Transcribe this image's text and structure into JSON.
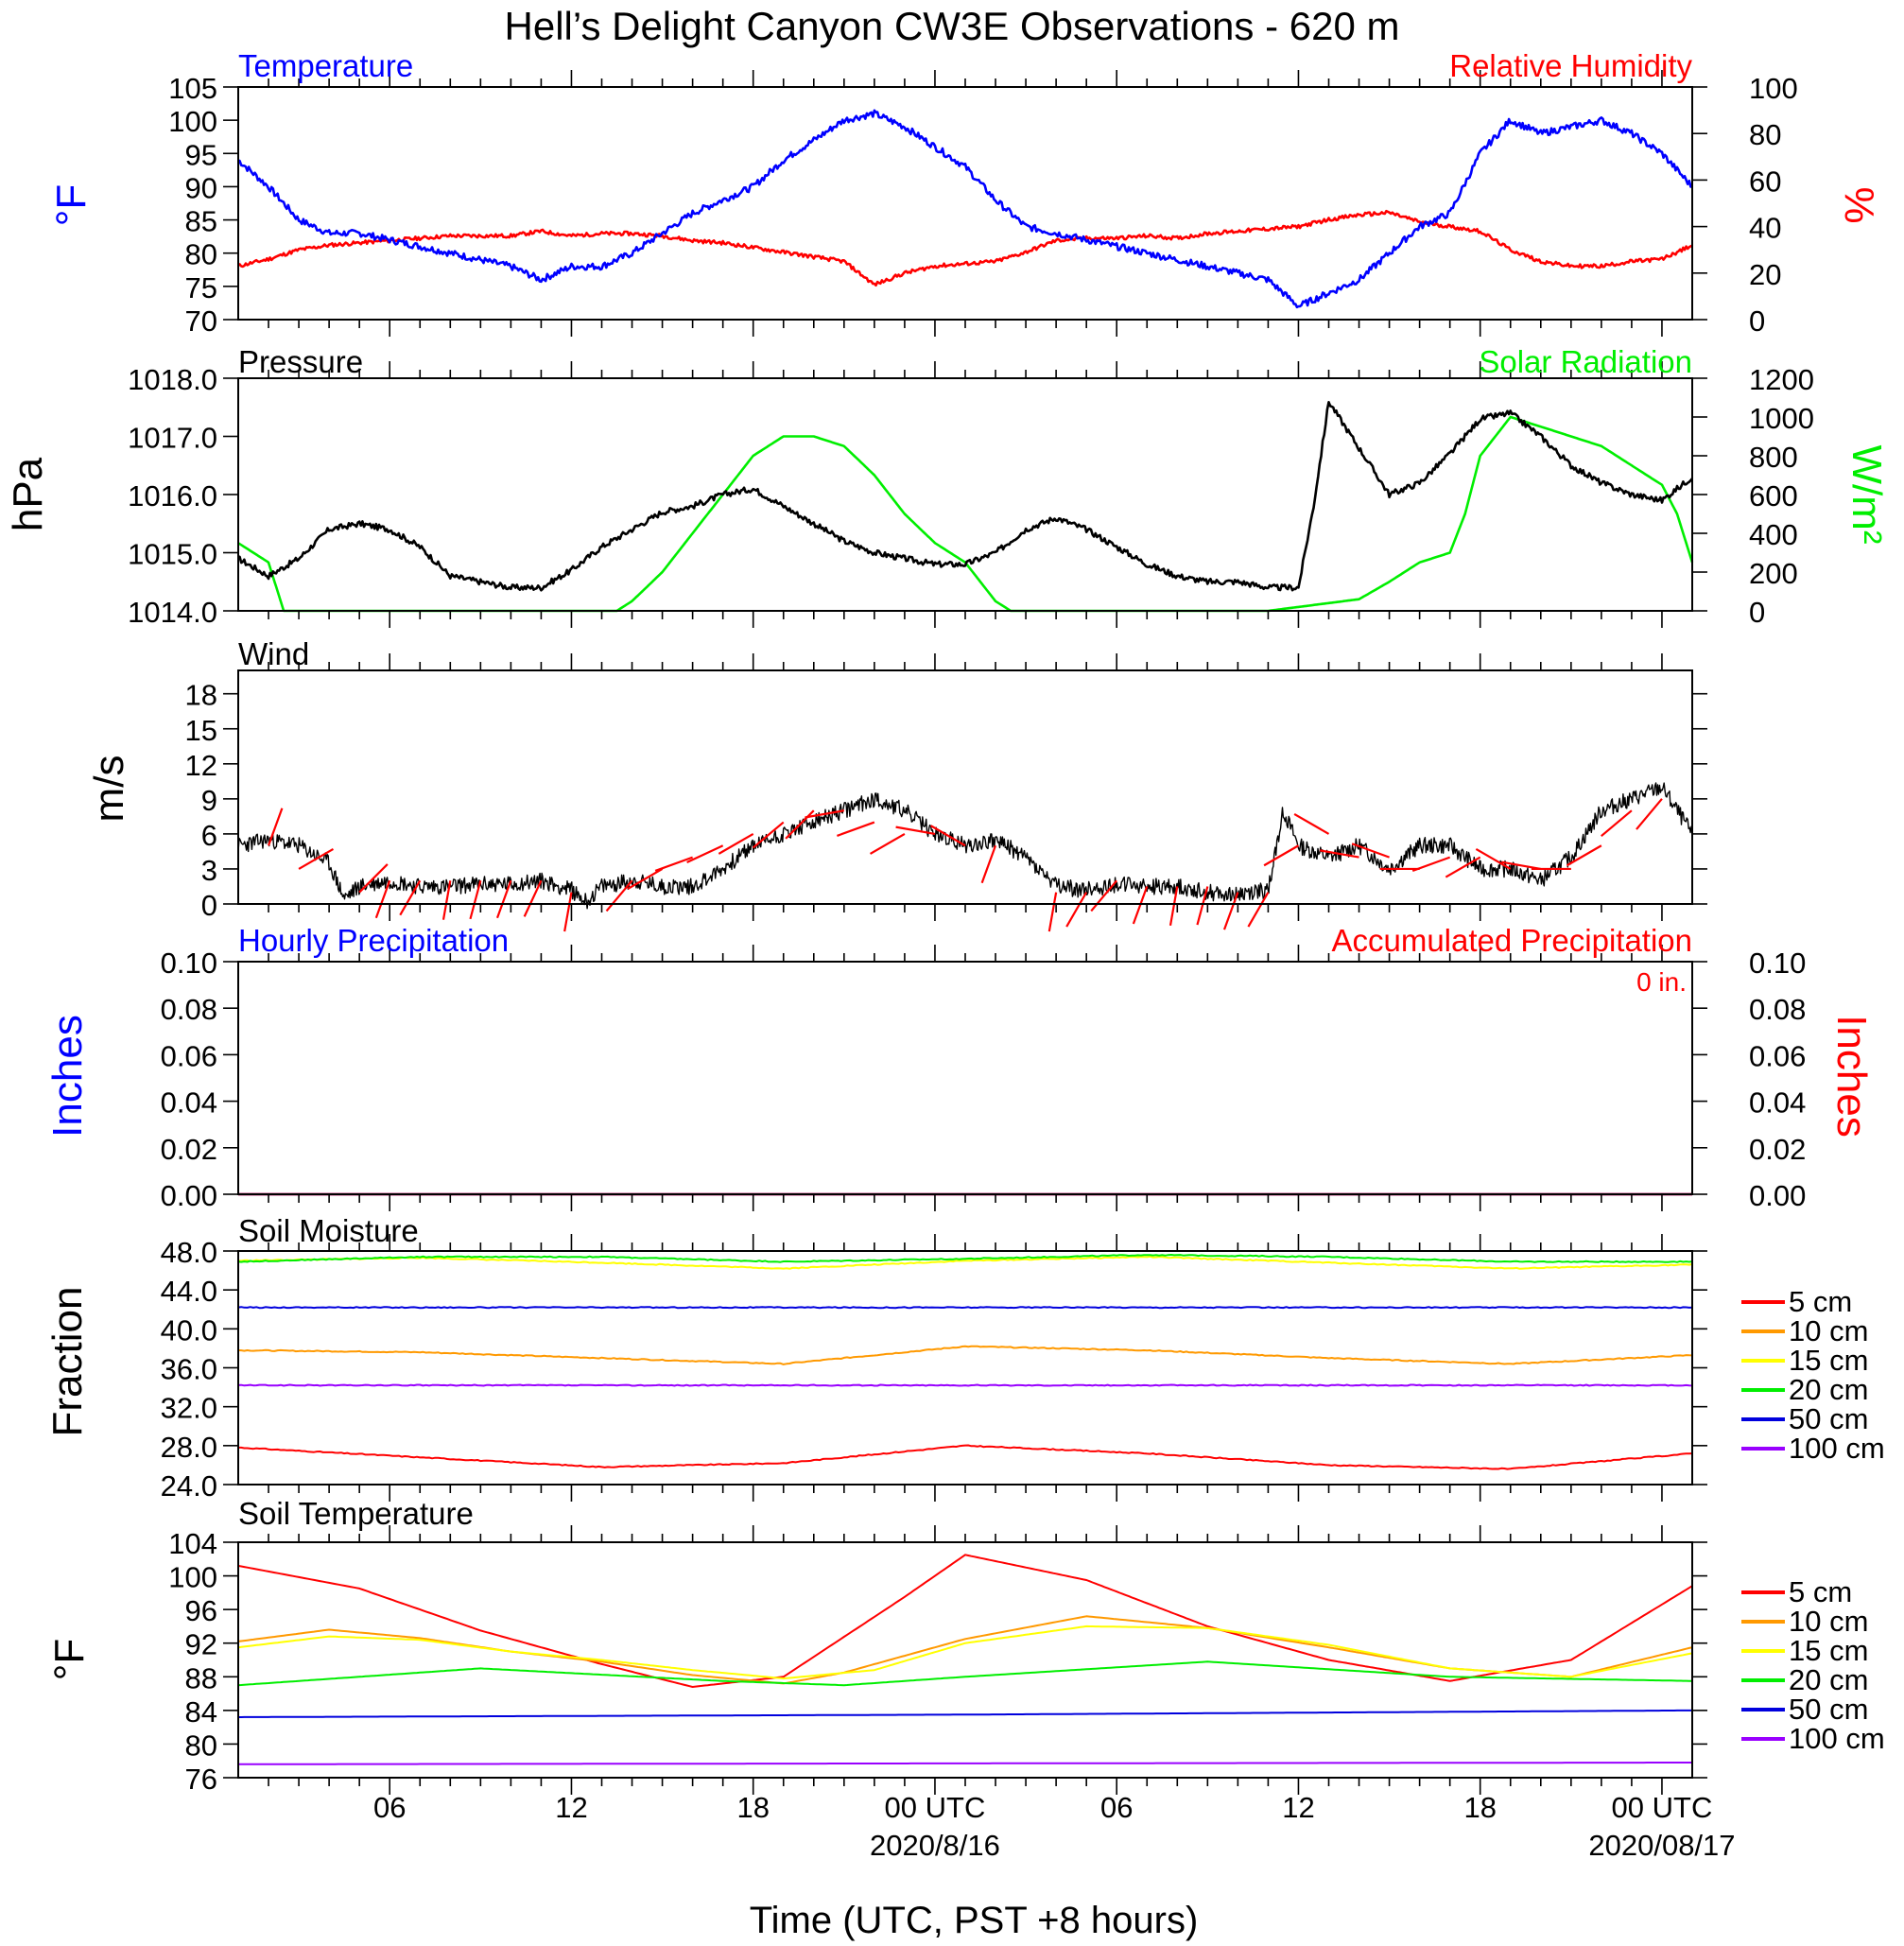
{
  "title": "Hell’s Delight Canyon CW3E Observations - 620 m",
  "colors": {
    "temp": "#0000ff",
    "rh": "#ff0000",
    "pressure": "#000000",
    "solar": "#00ee00",
    "barb": "#ff0000",
    "s5": "#ff0000",
    "s10": "#ff9900",
    "s15": "#ffff00",
    "s20": "#00ee00",
    "s50": "#0000dd",
    "s100": "#9900ff"
  },
  "x_axis": {
    "title": "Time (UTC, PST +8 hours)",
    "range_hours": [
      0,
      48
    ],
    "start_time": "2020-08-15 00:00 UTC",
    "major_ticks": [
      {
        "hour": 5,
        "label": "06"
      },
      {
        "hour": 11,
        "label": "12"
      },
      {
        "hour": 17,
        "label": "18"
      },
      {
        "hour": 23,
        "label": "00 UTC",
        "date": "2020/8/16"
      },
      {
        "hour": 29,
        "label": "06"
      },
      {
        "hour": 35,
        "label": "12"
      },
      {
        "hour": 41,
        "label": "18"
      },
      {
        "hour": 47,
        "label": "00 UTC",
        "date": "2020/08/17"
      }
    ]
  },
  "panels": [
    {
      "id": "temp",
      "left_title": "Temperature",
      "right_title": "Relative Humidity",
      "y_title": "°F",
      "y2_title": "%",
      "y_range": [
        70,
        105
      ],
      "y_ticks": [
        "70",
        "75",
        "80",
        "85",
        "90",
        "95",
        "100",
        "105"
      ],
      "y2_range": [
        0,
        100
      ],
      "y2_ticks": [
        "0",
        "20",
        "40",
        "60",
        "80",
        "100"
      ]
    },
    {
      "id": "pressure",
      "left_title": "Pressure",
      "right_title": "Solar Radiation",
      "y_title": "hPa",
      "y2_title": "W/m²",
      "y_range": [
        1014,
        1018
      ],
      "y_ticks": [
        "1014.0",
        "1015.0",
        "1016.0",
        "1017.0",
        "1018.0"
      ],
      "y2_range": [
        0,
        1200
      ],
      "y2_ticks": [
        "0",
        "200",
        "400",
        "600",
        "800",
        "1000",
        "1200"
      ]
    },
    {
      "id": "wind",
      "left_title": "Wind",
      "y_title": "m/s",
      "y_range": [
        0,
        20
      ],
      "y_ticks": [
        "0",
        "3",
        "6",
        "9",
        "12",
        "15",
        "18"
      ]
    },
    {
      "id": "precip",
      "left_title": "Hourly Precipitation",
      "right_title": "Accumulated Precipitation",
      "accum_label": "0 in.",
      "y_title": "Inches",
      "y2_title": "Inches",
      "y_range": [
        0,
        0.1
      ],
      "y_ticks": [
        "0.00",
        "0.02",
        "0.04",
        "0.06",
        "0.08",
        "0.10"
      ],
      "y2_ticks": [
        "0.00",
        "0.02",
        "0.04",
        "0.06",
        "0.08",
        "0.10"
      ]
    },
    {
      "id": "soilm",
      "left_title": "Soil Moisture",
      "y_title": "Fraction",
      "y_range": [
        24,
        48
      ],
      "y_ticks": [
        "24.0",
        "28.0",
        "32.0",
        "36.0",
        "40.0",
        "44.0",
        "48.0"
      ],
      "legend": [
        "5 cm",
        "10 cm",
        "15 cm",
        "20 cm",
        "50 cm",
        "100 cm"
      ]
    },
    {
      "id": "soilt",
      "left_title": "Soil Temperature",
      "y_title": "°F",
      "y_range": [
        76,
        104
      ],
      "y_ticks": [
        "76",
        "80",
        "84",
        "88",
        "92",
        "96",
        "100",
        "104"
      ],
      "legend": [
        "5 cm",
        "10 cm",
        "15 cm",
        "20 cm",
        "50 cm",
        "100 cm"
      ]
    }
  ],
  "chart_data": [
    {
      "type": "line",
      "panel": "temp",
      "series": [
        {
          "name": "Temperature",
          "axis": "left",
          "x": [
            0,
            1,
            2,
            3,
            4,
            5,
            6,
            7,
            8,
            9,
            10,
            11,
            12,
            13,
            14,
            15,
            16,
            17,
            18,
            19,
            20,
            21,
            22,
            23,
            24,
            25,
            26,
            27,
            28,
            29,
            30,
            31,
            32,
            33,
            34,
            35,
            36,
            37,
            38,
            39,
            40,
            41,
            42,
            43,
            44,
            45,
            46,
            47,
            48
          ],
          "values": [
            94,
            90,
            85,
            83,
            83,
            82,
            81,
            80,
            79,
            78,
            76,
            78,
            78,
            80,
            83,
            86,
            88,
            90,
            94,
            97,
            100,
            101,
            99,
            96,
            93,
            88,
            84,
            83,
            82,
            81,
            80,
            79,
            78,
            77,
            76,
            72,
            74,
            76,
            80,
            84,
            86,
            95,
            100,
            98,
            99,
            100,
            98,
            95,
            90
          ]
        },
        {
          "name": "Relative Humidity",
          "axis": "right",
          "x": [
            0,
            1,
            2,
            3,
            4,
            5,
            6,
            7,
            8,
            9,
            10,
            11,
            12,
            13,
            14,
            15,
            16,
            17,
            18,
            19,
            20,
            21,
            22,
            23,
            24,
            25,
            26,
            27,
            28,
            29,
            30,
            31,
            32,
            33,
            34,
            35,
            36,
            37,
            38,
            39,
            40,
            41,
            42,
            43,
            44,
            45,
            46,
            47,
            48
          ],
          "values": [
            23,
            26,
            30,
            32,
            33,
            34,
            35,
            36,
            36,
            36,
            38,
            36,
            37,
            37,
            36,
            34,
            33,
            31,
            29,
            27,
            25,
            15,
            20,
            23,
            24,
            25,
            29,
            34,
            35,
            35,
            36,
            35,
            37,
            38,
            39,
            40,
            43,
            45,
            46,
            42,
            40,
            38,
            30,
            25,
            23,
            23,
            25,
            26,
            32
          ]
        }
      ]
    },
    {
      "type": "line",
      "panel": "pressure",
      "series": [
        {
          "name": "Pressure",
          "axis": "left",
          "x": [
            0,
            1,
            2,
            3,
            4,
            5,
            6,
            7,
            8,
            9,
            10,
            11,
            12,
            13,
            14,
            15,
            16,
            17,
            18,
            19,
            20,
            21,
            22,
            23,
            24,
            25,
            26,
            27,
            28,
            29,
            30,
            31,
            32,
            33,
            34,
            35,
            35.5,
            36,
            37,
            38,
            39,
            40,
            41,
            42,
            43,
            44,
            45,
            46,
            47,
            48
          ],
          "values": [
            1014.9,
            1014.6,
            1014.9,
            1015.4,
            1015.5,
            1015.4,
            1015.1,
            1014.6,
            1014.5,
            1014.4,
            1014.4,
            1014.7,
            1015.1,
            1015.4,
            1015.7,
            1015.8,
            1016.0,
            1016.1,
            1015.8,
            1015.5,
            1015.2,
            1015.0,
            1014.9,
            1014.8,
            1014.8,
            1015.0,
            1015.4,
            1015.6,
            1015.4,
            1015.1,
            1014.8,
            1014.6,
            1014.5,
            1014.5,
            1014.4,
            1014.4,
            1015.8,
            1017.6,
            1016.8,
            1016.0,
            1016.2,
            1016.7,
            1017.3,
            1017.4,
            1017.0,
            1016.5,
            1016.2,
            1016.0,
            1015.9,
            1016.3
          ]
        },
        {
          "name": "Solar Radiation",
          "axis": "right",
          "x": [
            0,
            1,
            1.5,
            2,
            12,
            12.5,
            13,
            14,
            15,
            16,
            17,
            18,
            19,
            20,
            21,
            22,
            23,
            24,
            25,
            25.5,
            26,
            34,
            37,
            38,
            39,
            40,
            40.5,
            41,
            42,
            43,
            44,
            45,
            46,
            47,
            47.5,
            48
          ],
          "values": [
            350,
            250,
            0,
            0,
            0,
            0,
            50,
            200,
            400,
            600,
            800,
            900,
            900,
            850,
            700,
            500,
            350,
            250,
            50,
            0,
            0,
            0,
            60,
            150,
            250,
            300,
            500,
            800,
            1000,
            950,
            900,
            850,
            750,
            650,
            500,
            250
          ]
        }
      ]
    },
    {
      "type": "line",
      "panel": "wind",
      "series": [
        {
          "name": "Wind Speed",
          "x": [
            0,
            1,
            2,
            3,
            3.5,
            4,
            5,
            6,
            7,
            8,
            9,
            10,
            11,
            11.5,
            12,
            13,
            14,
            15,
            16,
            17,
            18,
            19,
            20,
            21,
            22,
            23,
            24,
            25,
            26,
            27,
            28,
            29,
            30,
            31,
            32,
            33,
            34,
            34.5,
            35,
            36,
            37,
            38,
            39,
            40,
            41,
            42,
            43,
            44,
            45,
            46,
            47,
            48
          ],
          "values": [
            5,
            5.5,
            5,
            3.5,
            0.5,
            1.5,
            2,
            1.5,
            1.5,
            1.7,
            1.7,
            2,
            1.2,
            0.2,
            1.5,
            2,
            1.5,
            1.5,
            3,
            5,
            6,
            7,
            8,
            9,
            8,
            6,
            5,
            5.5,
            4,
            1.5,
            1.2,
            1.7,
            1.5,
            1.5,
            1,
            0.8,
            1.2,
            8,
            5,
            4,
            5,
            3,
            5,
            5,
            3,
            3,
            2,
            4,
            8,
            9,
            10,
            6
          ]
        },
        {
          "name": "Wind Barbs (direction°, speed m/s)",
          "x": [
            1,
            2,
            4,
            5,
            6,
            7,
            8,
            9,
            10,
            11,
            13,
            14,
            15,
            16,
            17,
            18,
            19,
            20,
            21,
            22,
            23,
            24,
            25,
            27,
            28,
            29,
            30,
            31,
            32,
            33,
            34,
            35,
            36,
            37,
            38,
            39,
            40,
            41,
            42,
            43,
            44,
            45,
            46,
            47
          ],
          "dir_deg": [
            20,
            60,
            45,
            200,
            210,
            190,
            195,
            200,
            205,
            190,
            220,
            240,
            250,
            245,
            240,
            230,
            225,
            260,
            250,
            240,
            280,
            300,
            200,
            190,
            210,
            220,
            200,
            190,
            195,
            200,
            210,
            240,
            300,
            280,
            290,
            270,
            250,
            240,
            300,
            280,
            270,
            240,
            230,
            220
          ],
          "speed": [
            5,
            3,
            1,
            2,
            2,
            2,
            2,
            2,
            2,
            1,
            2,
            3,
            4,
            5,
            6,
            7,
            8,
            8,
            7,
            6,
            6,
            5,
            5,
            1,
            1,
            2,
            1.5,
            1.5,
            1.5,
            1,
            1,
            5,
            6,
            4,
            4,
            3,
            4,
            4,
            3,
            3,
            3,
            5,
            8,
            9
          ]
        }
      ]
    },
    {
      "type": "line",
      "panel": "precip",
      "series": [
        {
          "name": "Hourly Precipitation",
          "x": [
            0,
            48
          ],
          "values": [
            0,
            0
          ]
        },
        {
          "name": "Accumulated Precipitation",
          "x": [
            0,
            48
          ],
          "values": [
            0,
            0
          ]
        }
      ]
    },
    {
      "type": "line",
      "panel": "soilm",
      "series": [
        {
          "name": "5 cm",
          "x": [
            0,
            6,
            12,
            18,
            24,
            30,
            36,
            42,
            48
          ],
          "values": [
            27.8,
            26.8,
            25.8,
            26.2,
            28.0,
            27.2,
            26.0,
            25.6,
            27.2
          ]
        },
        {
          "name": "10 cm",
          "x": [
            0,
            6,
            12,
            18,
            24,
            30,
            36,
            42,
            48
          ],
          "values": [
            37.8,
            37.6,
            37.0,
            36.4,
            38.2,
            37.8,
            37.0,
            36.4,
            37.3
          ]
        },
        {
          "name": "15 cm",
          "x": [
            0,
            6,
            12,
            18,
            24,
            30,
            36,
            42,
            48
          ],
          "values": [
            47.0,
            47.3,
            46.8,
            46.2,
            47.0,
            47.4,
            46.8,
            46.2,
            46.6
          ]
        },
        {
          "name": "20 cm",
          "x": [
            0,
            6,
            12,
            18,
            24,
            30,
            36,
            42,
            48
          ],
          "values": [
            46.9,
            47.4,
            47.4,
            46.9,
            47.2,
            47.6,
            47.4,
            46.9,
            46.9
          ]
        },
        {
          "name": "50 cm",
          "x": [
            0,
            48
          ],
          "values": [
            42.2,
            42.2
          ]
        },
        {
          "name": "100 cm",
          "x": [
            0,
            48
          ],
          "values": [
            34.2,
            34.2
          ]
        }
      ]
    },
    {
      "type": "line",
      "panel": "soilt",
      "series": [
        {
          "name": "5 cm",
          "x": [
            0,
            4,
            8,
            12,
            15,
            18,
            22,
            24,
            28,
            32,
            36,
            40,
            44,
            48
          ],
          "values": [
            101.2,
            98.5,
            93.5,
            89.5,
            86.8,
            88.0,
            97.5,
            102.5,
            99.5,
            94,
            90,
            87.5,
            90,
            98.8
          ]
        },
        {
          "name": "10 cm",
          "x": [
            0,
            3,
            6,
            9,
            12,
            15,
            18,
            20,
            24,
            28,
            32,
            36,
            40,
            44,
            48
          ],
          "values": [
            92.2,
            93.6,
            92.6,
            91,
            89.8,
            88.2,
            87.2,
            88.5,
            92.5,
            95.2,
            93.8,
            91.5,
            89,
            88,
            91.5
          ]
        },
        {
          "name": "15 cm",
          "x": [
            0,
            3,
            6,
            9,
            12,
            15,
            18,
            21,
            24,
            28,
            32,
            36,
            40,
            44,
            48
          ],
          "values": [
            91.5,
            92.8,
            92.4,
            91,
            90,
            88.8,
            87.8,
            88.8,
            92.0,
            94,
            93.8,
            91.8,
            89,
            88,
            90.8
          ]
        },
        {
          "name": "20 cm",
          "x": [
            0,
            8,
            16,
            20,
            24,
            32,
            40,
            48
          ],
          "values": [
            87,
            89,
            87.5,
            87,
            88,
            89.8,
            88,
            87.5
          ]
        },
        {
          "name": "50 cm",
          "x": [
            0,
            24,
            48
          ],
          "values": [
            83.2,
            83.5,
            84.0
          ]
        },
        {
          "name": "100 cm",
          "x": [
            0,
            48
          ],
          "values": [
            77.6,
            77.8
          ]
        }
      ]
    }
  ]
}
